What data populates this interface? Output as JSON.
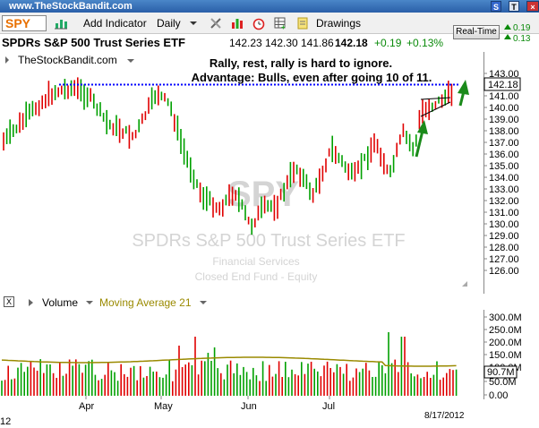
{
  "titlebar": {
    "url": "www.TheStockBandit.com",
    "btn_s": "S",
    "btn_t": "T"
  },
  "toolbar": {
    "symbol": "SPY",
    "add_indicator": "Add Indicator",
    "period": "Daily",
    "drawings": "Drawings"
  },
  "info": {
    "name": "SPDRs S&P 500 Trust Series ETF",
    "open": "142.23",
    "high": "142.30",
    "low": "141.86",
    "close": "142.18",
    "change": "+0.19",
    "change_pct": "+0.13%",
    "realtime": "Real-Time",
    "mini_top": "0.19",
    "mini_bot": "0.13"
  },
  "chart": {
    "site": "TheStockBandit.com",
    "annotation_line1": "Rally, rest, rally is hard to ignore.",
    "annotation_line2": "Advantage: Bulls, even after going 10 of 11.",
    "watermark_symbol": "SPY",
    "watermark_name": "SPDRs S&P 500 Trust Series ETF",
    "watermark_sector": "Financial Services",
    "watermark_type": "Closed End Fund - Equity",
    "last_price": "142.18",
    "price_ticks": [
      "143.00",
      "141.00",
      "140.00",
      "139.00",
      "138.00",
      "137.00",
      "136.00",
      "135.00",
      "134.00",
      "133.00",
      "132.00",
      "131.00",
      "130.00",
      "129.00",
      "128.00",
      "127.00",
      "126.00"
    ],
    "months": [
      "Apr",
      "May",
      "Jun",
      "Jul"
    ]
  },
  "volume": {
    "x": "X",
    "label": "Volume",
    "ma_label": "Moving Average 21",
    "ticks": [
      "300.0M",
      "250.0M",
      "200.0M",
      "150.0M",
      "100.0M",
      "50.0M",
      "0.00"
    ],
    "last": "90.7M"
  },
  "footer": {
    "date": "8/17/2012",
    "left": "12"
  },
  "colors": {
    "up": "#00a000",
    "down": "#e00000",
    "ma": "#9a8a00",
    "resistance": "#0000ff"
  }
}
